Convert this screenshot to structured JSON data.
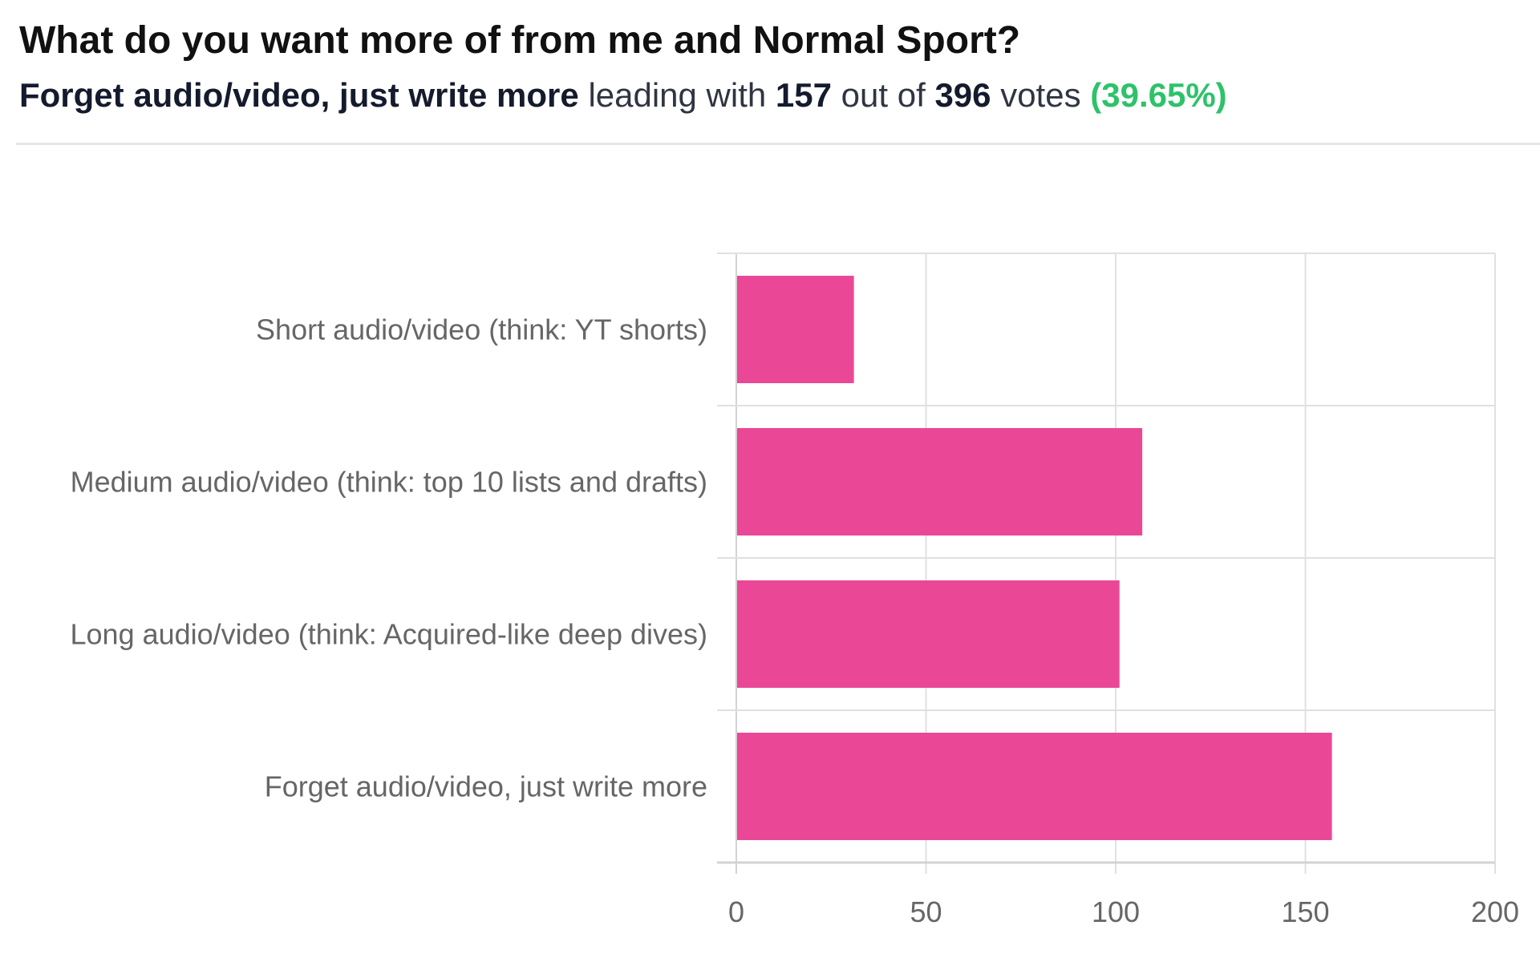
{
  "poll": {
    "question": "What do you want more of from me and Normal Sport?",
    "leader": "Forget audio/video, just write more",
    "leading_with": "leading with",
    "leader_votes": "157",
    "out_of": "out of",
    "total_votes": "396",
    "votes_word": "votes",
    "leader_pct": "(39.65%)"
  },
  "colors": {
    "bar": "#ea4897",
    "grid": "#e0e0e0",
    "axis": "#d3d3d3",
    "percent": "#2ec26a"
  },
  "chart_data": {
    "type": "bar",
    "orientation": "horizontal",
    "title": "What do you want more of from me and Normal Sport?",
    "categories": [
      "Short audio/video (think: YT shorts)",
      "Medium audio/video (think: top 10 lists and drafts)",
      "Long audio/video (think: Acquired-like deep dives)",
      "Forget audio/video, just write more"
    ],
    "values": [
      31,
      107,
      101,
      157
    ],
    "xlim": [
      0,
      200
    ],
    "xticks": [
      0,
      50,
      100,
      150,
      200
    ],
    "xlabel": "",
    "ylabel": "",
    "grid": true,
    "legend": "none"
  }
}
